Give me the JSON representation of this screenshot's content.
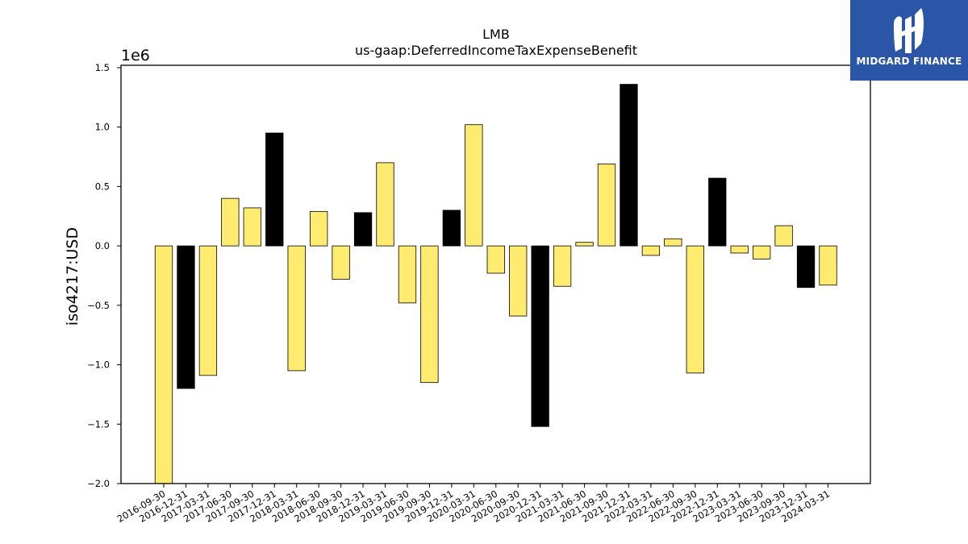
{
  "chart_data": {
    "type": "bar",
    "title": "LMB",
    "subtitle": "us-gaap:DeferredIncomeTaxExpenseBenefit",
    "ylabel": "iso4217:USD",
    "xlabel": "",
    "offset_label": "1e6",
    "ylim": [
      -2000000,
      1520000
    ],
    "yticks": [
      1.5,
      1.0,
      0.5,
      0.0,
      -0.5,
      -1.0,
      -1.5,
      -2.0
    ],
    "ytick_labels": [
      "1.5",
      "1.0",
      "0.5",
      "0.0",
      "−0.5",
      "−1.0",
      "−1.5",
      "−2.0"
    ],
    "grid": false,
    "colors": {
      "default": "#ffeb70",
      "highlight": "#000000",
      "edge": "#000000"
    },
    "categories": [
      "2016-09-30",
      "2016-12-31",
      "2017-03-31",
      "2017-06-30",
      "2017-09-30",
      "2017-12-31",
      "2018-03-31",
      "2018-06-30",
      "2018-09-30",
      "2018-12-31",
      "2019-03-31",
      "2019-06-30",
      "2019-09-30",
      "2019-12-31",
      "2020-03-31",
      "2020-06-30",
      "2020-09-30",
      "2020-12-31",
      "2021-03-31",
      "2021-06-30",
      "2021-09-30",
      "2021-12-31",
      "2022-03-31",
      "2022-06-30",
      "2022-09-30",
      "2022-12-31",
      "2023-03-31",
      "2023-06-30",
      "2023-09-30",
      "2023-12-31",
      "2024-03-31"
    ],
    "values": [
      -2020000,
      -1200000,
      -1090000,
      400000,
      320000,
      950000,
      -1050000,
      290000,
      -280000,
      280000,
      700000,
      -480000,
      -1150000,
      300000,
      1020000,
      -230000,
      -590000,
      -1520000,
      -340000,
      30000,
      690000,
      1360000,
      -80000,
      60000,
      -1070000,
      570000,
      -60000,
      -110000,
      170000,
      -350000,
      -330000
    ],
    "highlight": [
      false,
      true,
      false,
      false,
      false,
      true,
      false,
      false,
      false,
      true,
      false,
      false,
      false,
      true,
      false,
      false,
      false,
      true,
      false,
      false,
      false,
      true,
      false,
      false,
      false,
      true,
      false,
      false,
      false,
      true,
      false
    ]
  },
  "logo": {
    "text": "MIDGARD FINANCE",
    "icon": "midgard-logo-icon",
    "background": "#2b55a6"
  }
}
